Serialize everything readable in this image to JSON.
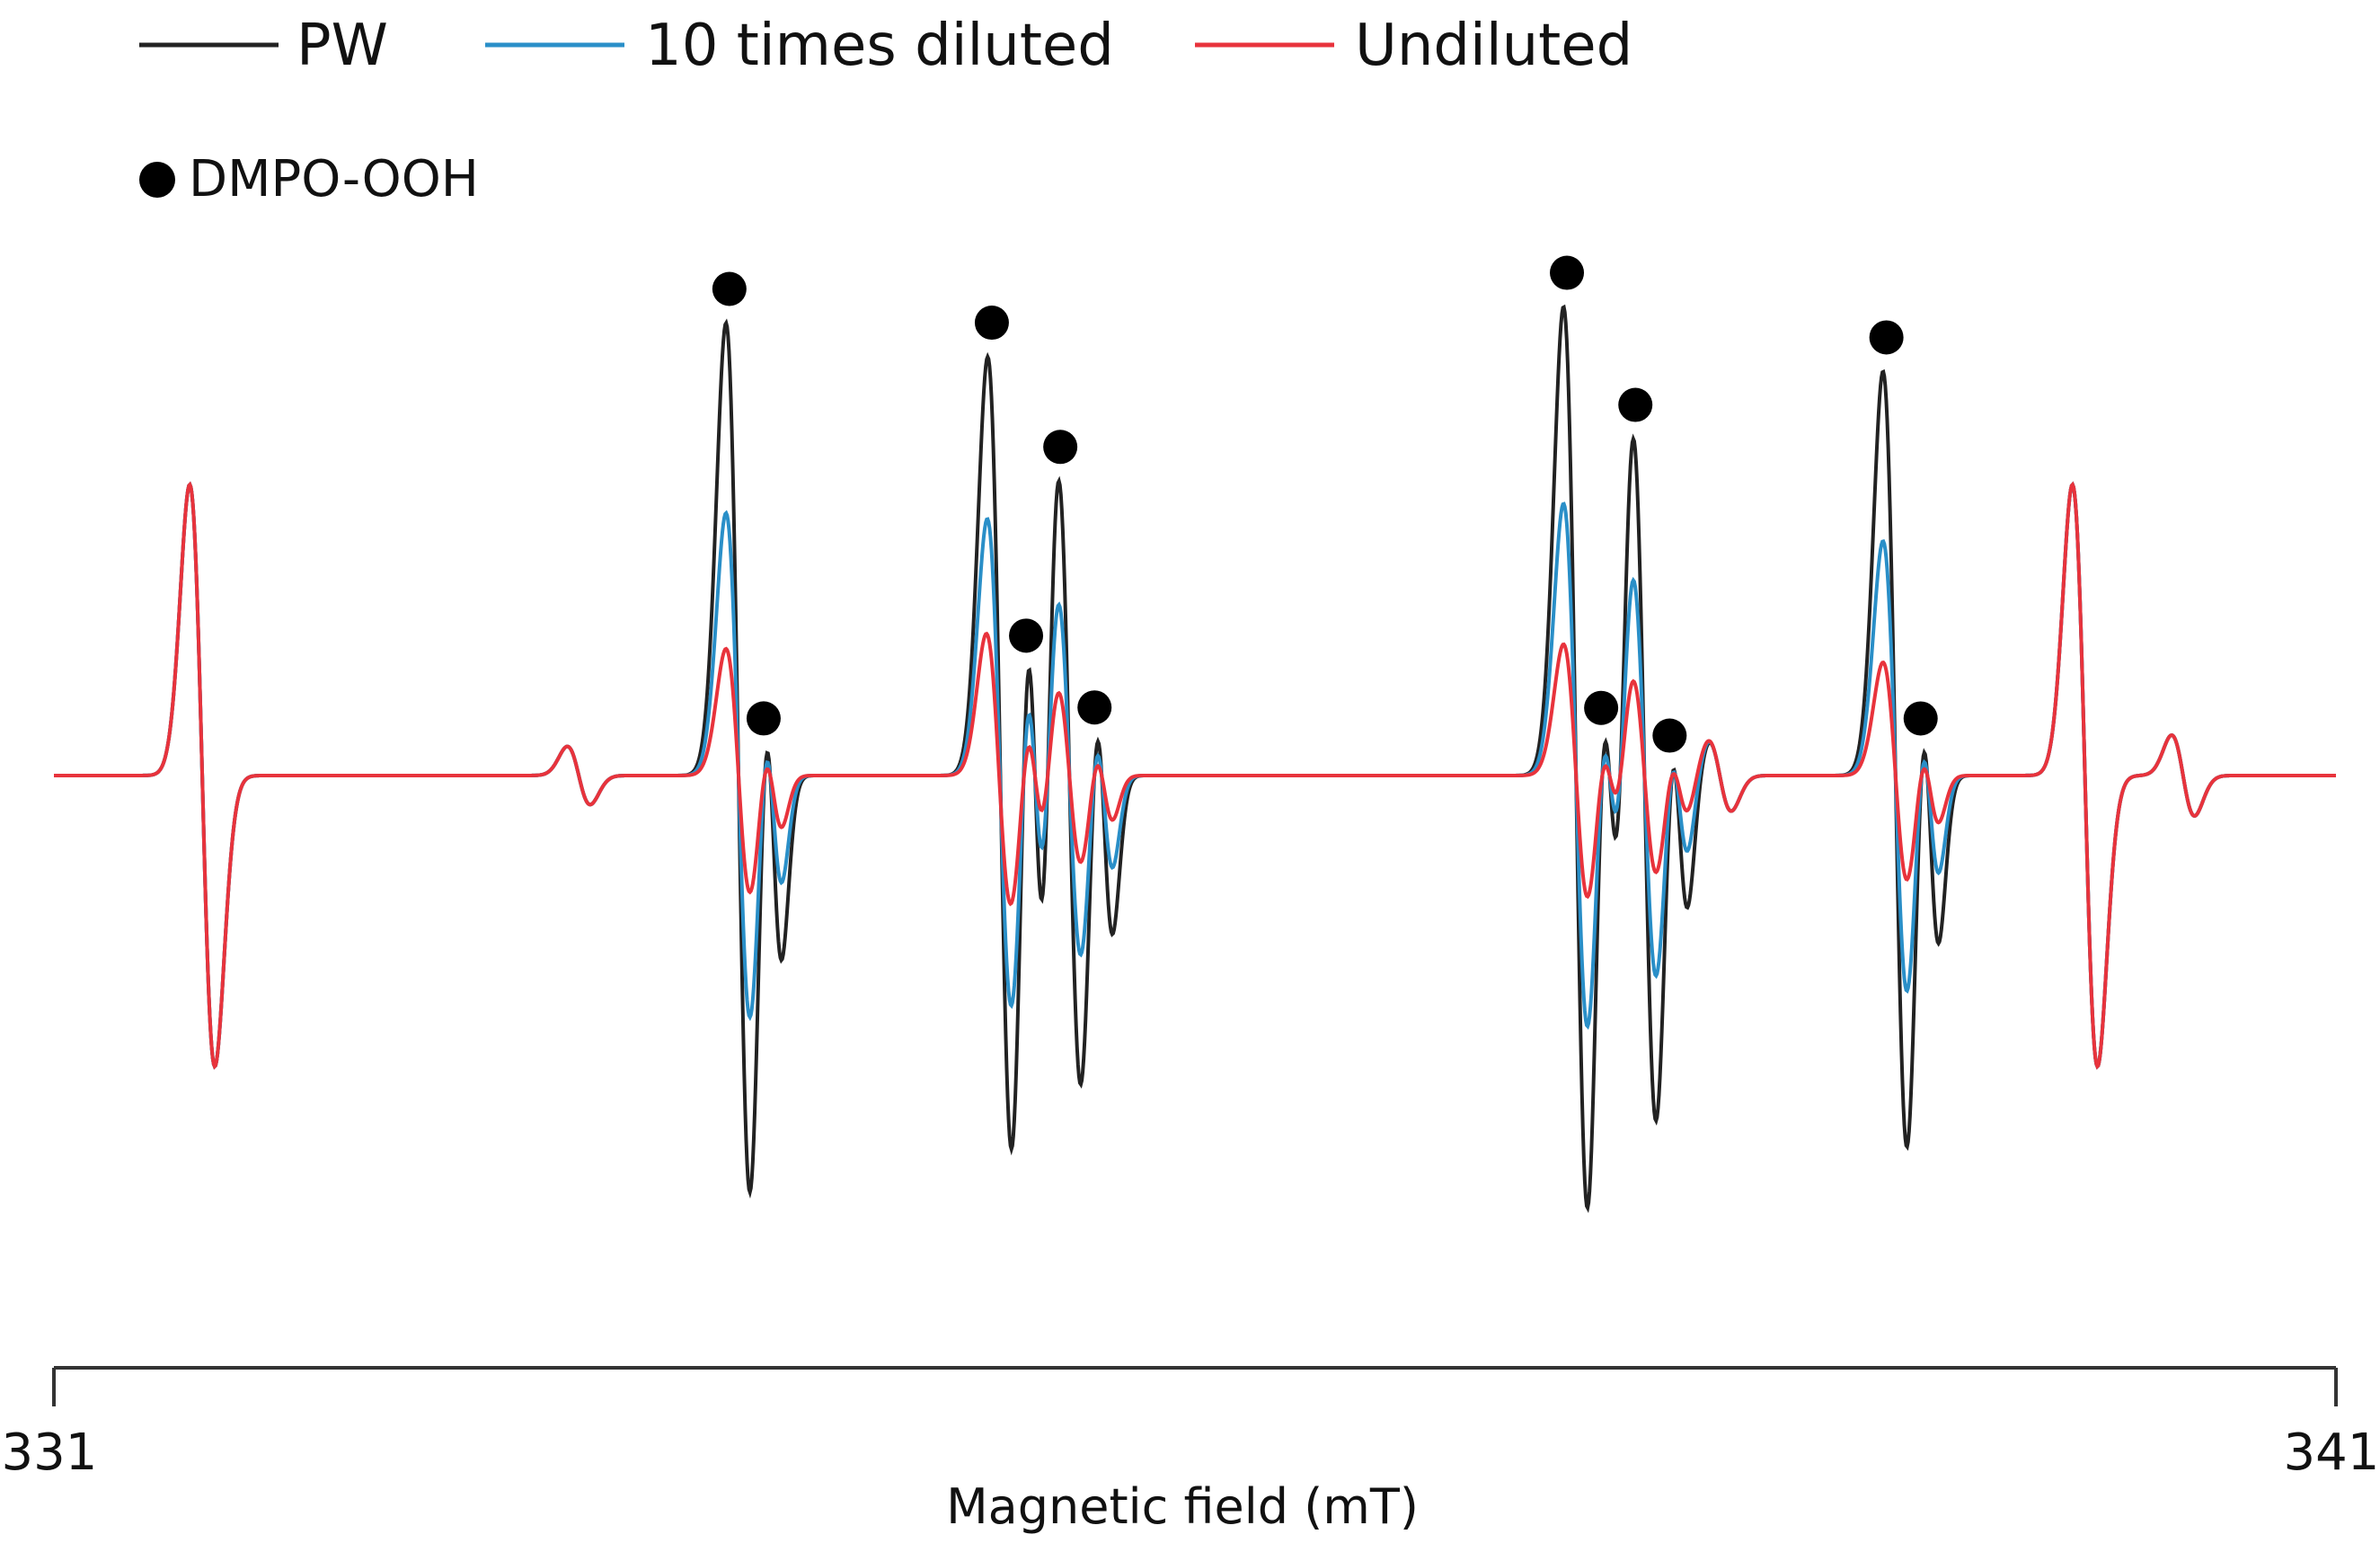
{
  "chart_data": {
    "type": "line",
    "xlabel": "Magnetic field (mT)",
    "xlim": [
      331,
      341
    ],
    "x_ticks": [
      "331",
      "341"
    ],
    "baseline_y": 0,
    "ylim": [
      -360,
      380
    ],
    "grid": false,
    "legend_position": "top-left",
    "marker_legend": {
      "label": "DMPO-OOH",
      "symbol": "filled-circle"
    },
    "series": [
      {
        "name": "PW",
        "color": "#222222",
        "amp_scale": 1.0,
        "peaks": [
          {
            "x": 331.65,
            "a": 180,
            "w": 0.055,
            "scaled": false
          },
          {
            "x": 333.3,
            "a": 18,
            "w": 0.05,
            "scaled": false
          },
          {
            "x": 334.0,
            "a": 280,
            "w": 0.055,
            "scaled": true
          },
          {
            "x": 334.15,
            "a": 110,
            "w": 0.04,
            "scaled": true
          },
          {
            "x": 335.12,
            "a": 25,
            "w": 0.05,
            "scaled": false
          },
          {
            "x": 335.15,
            "a": 240,
            "w": 0.055,
            "scaled": true
          },
          {
            "x": 335.3,
            "a": 150,
            "w": 0.04,
            "scaled": true
          },
          {
            "x": 335.45,
            "a": 210,
            "w": 0.055,
            "scaled": true
          },
          {
            "x": 335.6,
            "a": 95,
            "w": 0.04,
            "scaled": true
          },
          {
            "x": 337.67,
            "a": 290,
            "w": 0.055,
            "scaled": true
          },
          {
            "x": 337.82,
            "a": 110,
            "w": 0.04,
            "scaled": true
          },
          {
            "x": 337.97,
            "a": 230,
            "w": 0.055,
            "scaled": true
          },
          {
            "x": 338.12,
            "a": 80,
            "w": 0.04,
            "scaled": true
          },
          {
            "x": 338.3,
            "a": 22,
            "w": 0.05,
            "scaled": false
          },
          {
            "x": 339.07,
            "a": 250,
            "w": 0.055,
            "scaled": true
          },
          {
            "x": 339.22,
            "a": 100,
            "w": 0.04,
            "scaled": true
          },
          {
            "x": 340.33,
            "a": 25,
            "w": 0.05,
            "scaled": false
          },
          {
            "x": 339.9,
            "a": 180,
            "w": 0.055,
            "scaled": false
          }
        ]
      },
      {
        "name": "10 times diluted",
        "color": "#2a8fc8",
        "amp_scale": 0.58
      },
      {
        "name": "Undiluted",
        "color": "#e8333c",
        "amp_scale": 0.28
      }
    ],
    "markers_x": [
      334.0,
      334.15,
      335.15,
      335.3,
      335.45,
      335.6,
      337.67,
      337.82,
      337.97,
      338.12,
      339.07,
      339.22
    ]
  }
}
